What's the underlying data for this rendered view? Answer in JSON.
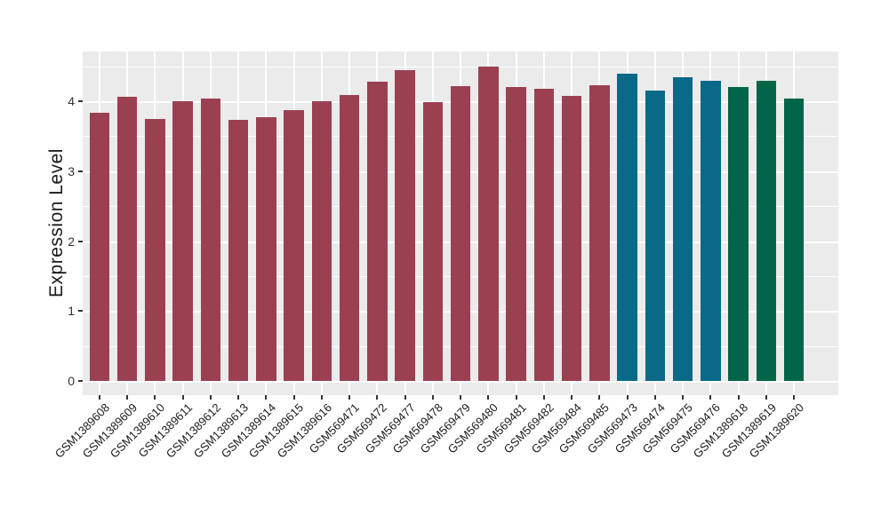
{
  "figure": {
    "background_color": "#ffffff",
    "panel_background_color": "#EBEBEB",
    "gridline_color": "#ffffff"
  },
  "chart_data": {
    "type": "bar",
    "title": "",
    "xlabel": "",
    "ylabel": "Expression Level",
    "ylim": [
      0,
      4.7
    ],
    "yticks": [
      0,
      1,
      2,
      3,
      4
    ],
    "ytick_labels": [
      "0",
      "1",
      "2",
      "3",
      "4"
    ],
    "grid": "white major and minor horizontal lines plus vertical category lines on gray panel",
    "legend_position": "none",
    "categories": [
      "GSM1389608",
      "GSM1389609",
      "GSM1389610",
      "GSM1389611",
      "GSM1389612",
      "GSM1389613",
      "GSM1389614",
      "GSM1389615",
      "GSM1389616",
      "GSM569471",
      "GSM569472",
      "GSM569477",
      "GSM569478",
      "GSM569479",
      "GSM569480",
      "GSM569481",
      "GSM569482",
      "GSM569484",
      "GSM569485",
      "GSM569473",
      "GSM569474",
      "GSM569475",
      "GSM569476",
      "GSM1389618",
      "GSM1389619",
      "GSM1389620"
    ],
    "values": [
      3.83,
      4.06,
      3.75,
      4.0,
      4.04,
      3.73,
      3.77,
      3.87,
      4.0,
      4.09,
      4.28,
      4.45,
      3.99,
      4.21,
      4.5,
      4.2,
      4.18,
      4.07,
      4.23,
      4.39,
      4.15,
      4.34,
      4.29,
      4.2,
      4.29,
      4.04
    ],
    "palette": {
      "maroon": "#9B4050",
      "teal": "#0A6987",
      "green": "#006647"
    },
    "bar_groups": [
      "maroon",
      "maroon",
      "maroon",
      "maroon",
      "maroon",
      "maroon",
      "maroon",
      "maroon",
      "maroon",
      "maroon",
      "maroon",
      "maroon",
      "maroon",
      "maroon",
      "maroon",
      "maroon",
      "maroon",
      "maroon",
      "maroon",
      "teal",
      "teal",
      "teal",
      "teal",
      "green",
      "green",
      "green"
    ]
  }
}
